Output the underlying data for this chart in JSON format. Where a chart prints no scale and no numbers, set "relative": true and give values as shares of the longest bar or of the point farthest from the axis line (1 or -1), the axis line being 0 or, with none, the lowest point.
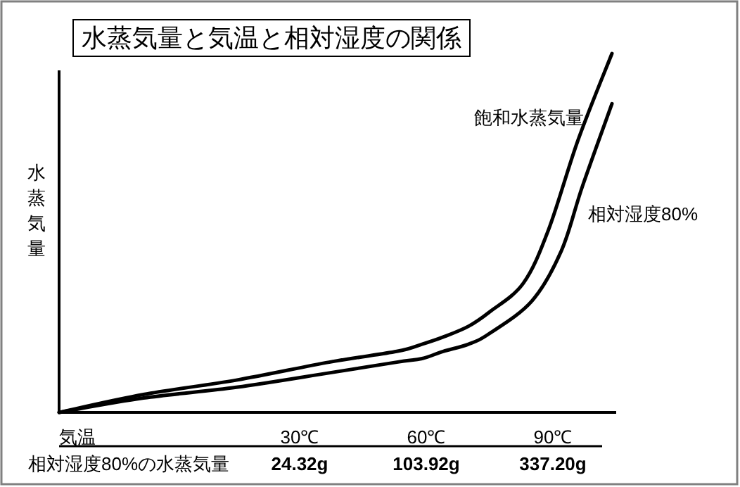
{
  "chart_data": {
    "type": "line",
    "relative": true,
    "title": "水蒸気量と気温と相対湿度の関係",
    "xlabel": "気温",
    "ylabel": "水蒸気量",
    "line_style": "solid",
    "xlim": [
      -27,
      105
    ],
    "xticks": [
      {
        "value": 30,
        "label": "30℃"
      },
      {
        "value": 60,
        "label": "60℃"
      },
      {
        "value": 90,
        "label": "90℃"
      }
    ],
    "series": [
      {
        "name": "飽和水蒸気量",
        "color": "#000000",
        "x": [
          -27,
          -7,
          15,
          37,
          53,
          59,
          64,
          70,
          75,
          83,
          89,
          96,
          104
        ],
        "values": [
          0,
          0.05,
          0.09,
          0.14,
          0.17,
          0.19,
          0.21,
          0.24,
          0.28,
          0.36,
          0.51,
          0.76,
          1
        ]
      },
      {
        "name": "相対湿度80%",
        "color": "#000000",
        "x": [
          -27,
          -7,
          15,
          37,
          53,
          59,
          64,
          70,
          75,
          85,
          92,
          97,
          104
        ],
        "values": [
          0,
          0.04,
          0.07,
          0.11,
          0.14,
          0.15,
          0.17,
          0.19,
          0.22,
          0.31,
          0.45,
          0.63,
          0.86
        ]
      }
    ],
    "annotations": [
      "相対湿度80%の水蒸気量",
      "24.32g",
      "103.92g",
      "337.20g"
    ]
  }
}
